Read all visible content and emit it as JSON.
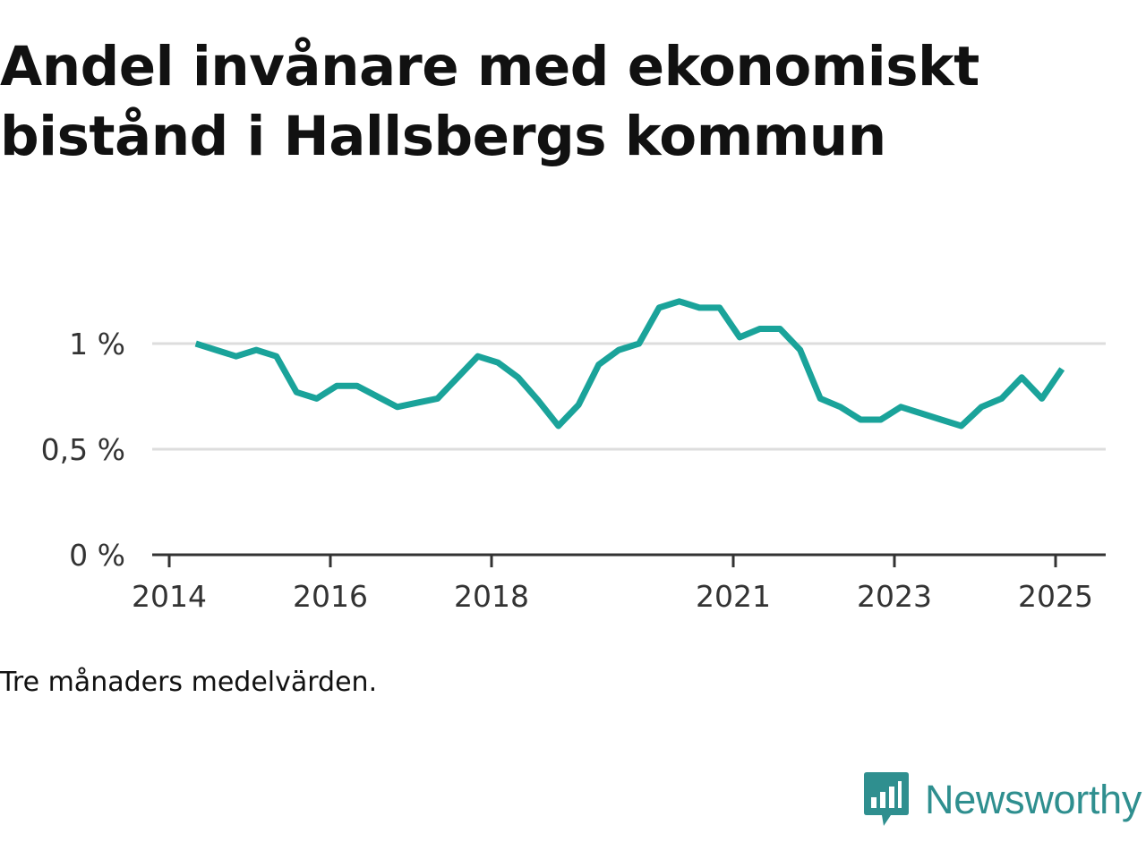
{
  "title_lines": [
    "Andel invånare med ekonomiskt",
    "bistånd i Hallsbergs kommun"
  ],
  "note": "Tre månaders medelvärden.",
  "brand": {
    "name": "Newsworthy",
    "icon": "bar-chart-speech-bubble-icon",
    "color": "#2f8f8f"
  },
  "chart_data": {
    "type": "line",
    "title": "Andel invånare med ekonomiskt bistånd i Hallsbergs kommun",
    "xlabel": "",
    "ylabel": "",
    "ylim": [
      0,
      1.2
    ],
    "yticks": [
      {
        "value": 0,
        "label": "0 %"
      },
      {
        "value": 0.5,
        "label": "0,5 %"
      },
      {
        "value": 1,
        "label": "1 %"
      }
    ],
    "xticks": [
      {
        "value": 2014,
        "label": "2014"
      },
      {
        "value": 2016,
        "label": "2016"
      },
      {
        "value": 2018,
        "label": "2018"
      },
      {
        "value": 2021,
        "label": "2021"
      },
      {
        "value": 2023,
        "label": "2023"
      },
      {
        "value": 2025,
        "label": "2025"
      }
    ],
    "grid": true,
    "line_color": "#1aa39a",
    "series": [
      {
        "x": [
          2014.33,
          2014.58,
          2014.83,
          2015.08,
          2015.33,
          2015.58,
          2015.83,
          2016.08,
          2016.33,
          2016.58,
          2016.83,
          2017.08,
          2017.33,
          2017.58,
          2017.83,
          2018.08,
          2018.33,
          2018.58,
          2018.83,
          2019.08,
          2019.33,
          2019.58,
          2019.83,
          2020.08,
          2020.33,
          2020.58,
          2020.83,
          2021.08,
          2021.33,
          2021.58,
          2021.83,
          2022.08,
          2022.33,
          2022.58,
          2022.83,
          2023.08,
          2023.33,
          2023.58,
          2023.83,
          2024.08,
          2024.33,
          2024.58,
          2024.83,
          2025.08
        ],
        "values": [
          1.0,
          0.97,
          0.94,
          0.97,
          0.94,
          0.77,
          0.74,
          0.8,
          0.8,
          0.75,
          0.7,
          0.72,
          0.74,
          0.84,
          0.94,
          0.91,
          0.84,
          0.73,
          0.61,
          0.71,
          0.9,
          0.97,
          1.0,
          1.17,
          1.2,
          1.17,
          1.17,
          1.03,
          1.07,
          1.07,
          0.97,
          0.74,
          0.7,
          0.64,
          0.64,
          0.7,
          0.67,
          0.64,
          0.61,
          0.7,
          0.74,
          0.84,
          0.74,
          0.88
        ]
      }
    ]
  }
}
